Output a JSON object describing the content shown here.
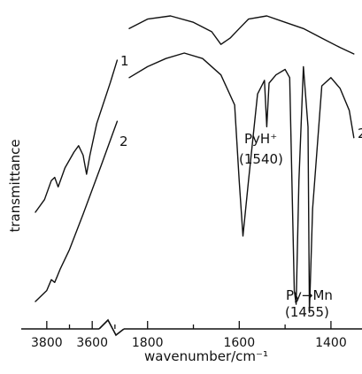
{
  "chart_data": {
    "type": "line",
    "xlabel": "wavenumber/cm⁻¹",
    "ylabel": "transmittance",
    "x_axis_break": true,
    "xlim_left_segment": [
      3850,
      3480
    ],
    "xlim_right_segment": [
      1840,
      1340
    ],
    "xticks_left": [
      "3800",
      "3600"
    ],
    "xticks_right": [
      "1800",
      "1600",
      "1400"
    ],
    "series": [
      {
        "name": "1",
        "x": [
          3850,
          3810,
          3780,
          3765,
          3750,
          3720,
          3680,
          3660,
          3640,
          3625,
          3610,
          3580,
          3520,
          3490,
          1840,
          1800,
          1750,
          1700,
          1660,
          1640,
          1620,
          1600,
          1580,
          1540,
          1500,
          1460,
          1420,
          1380,
          1350
        ],
        "y": [
          0.38,
          0.42,
          0.48,
          0.49,
          0.46,
          0.52,
          0.57,
          0.59,
          0.56,
          0.5,
          0.56,
          0.66,
          0.79,
          0.86,
          0.96,
          0.99,
          1.0,
          0.98,
          0.95,
          0.91,
          0.93,
          0.96,
          0.99,
          1.0,
          0.98,
          0.96,
          0.93,
          0.9,
          0.88
        ],
        "label_text": "1"
      },
      {
        "name": "2",
        "x": [
          3850,
          3800,
          3780,
          3765,
          3755,
          3740,
          3700,
          3640,
          3560,
          3490,
          1840,
          1800,
          1760,
          1720,
          1680,
          1640,
          1610,
          1600,
          1592,
          1580,
          1560,
          1545,
          1540,
          1535,
          1520,
          1500,
          1490,
          1480,
          1476,
          1470,
          1460,
          1450,
          1447,
          1440,
          1420,
          1400,
          1380,
          1360,
          1350
        ],
        "y": [
          0.06,
          0.1,
          0.14,
          0.13,
          0.15,
          0.18,
          0.25,
          0.38,
          0.56,
          0.72,
          0.88,
          0.92,
          0.95,
          0.97,
          0.95,
          0.89,
          0.78,
          0.5,
          0.3,
          0.5,
          0.82,
          0.87,
          0.7,
          0.86,
          0.89,
          0.91,
          0.88,
          0.1,
          0.05,
          0.5,
          0.92,
          0.7,
          0.02,
          0.4,
          0.85,
          0.88,
          0.84,
          0.76,
          0.66
        ],
        "label_text": "2"
      }
    ],
    "annotations": [
      {
        "line1": "PyH⁺",
        "line2": "(1540)",
        "x": 1540
      },
      {
        "line1": "Py→Mn",
        "line2": "(1455)",
        "x": 1455
      }
    ]
  }
}
